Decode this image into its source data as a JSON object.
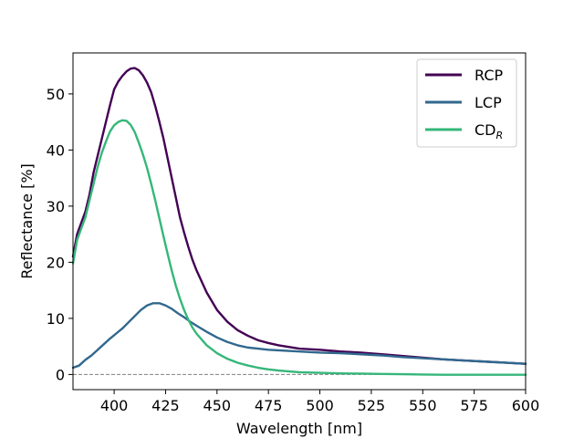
{
  "chart_data": {
    "type": "line",
    "xlabel": "Wavelength [nm]",
    "ylabel": "Reflectance [%]",
    "xlim": [
      380,
      600
    ],
    "ylim": [
      -2.7,
      57.3
    ],
    "xticks": [
      "400",
      "425",
      "450",
      "475",
      "500",
      "525",
      "550",
      "575",
      "600"
    ],
    "yticks": [
      "0",
      "10",
      "20",
      "30",
      "40",
      "50"
    ],
    "legend_position": "top-right",
    "grid": false,
    "reference_line": {
      "y": 0,
      "color": "#808080",
      "style": "dashed"
    },
    "series": [
      {
        "name": "RCP",
        "color": "#440154",
        "x": [
          380,
          382,
          384,
          386,
          388,
          390,
          392,
          394,
          396,
          398,
          400,
          402,
          404,
          406,
          408,
          410,
          412,
          414,
          416,
          418,
          420,
          422,
          424,
          426,
          428,
          430,
          432,
          434,
          436,
          438,
          440,
          445,
          450,
          455,
          460,
          465,
          470,
          475,
          480,
          490,
          500,
          510,
          520,
          530,
          540,
          550,
          560,
          570,
          580,
          590,
          600
        ],
        "y": [
          21,
          25,
          27,
          29,
          32,
          36,
          39,
          42,
          45,
          48,
          50.8,
          52.2,
          53.2,
          54.0,
          54.5,
          54.6,
          54.2,
          53.3,
          52.0,
          50.3,
          47.8,
          45.0,
          42.0,
          38.5,
          35.0,
          31.5,
          28.0,
          25.3,
          22.8,
          20.5,
          18.6,
          14.6,
          11.5,
          9.4,
          7.9,
          6.9,
          6.1,
          5.6,
          5.2,
          4.6,
          4.4,
          4.1,
          3.9,
          3.6,
          3.3,
          3.0,
          2.7,
          2.5,
          2.3,
          2.1,
          1.9
        ]
      },
      {
        "name": "LCP",
        "color": "#31688e",
        "x": [
          380,
          383,
          386,
          389,
          392,
          395,
          398,
          401,
          404,
          407,
          410,
          413,
          416,
          419,
          422,
          425,
          428,
          431,
          434,
          437,
          440,
          445,
          450,
          455,
          460,
          465,
          470,
          475,
          480,
          490,
          500,
          510,
          520,
          530,
          540,
          550,
          560,
          570,
          580,
          590,
          600
        ],
        "y": [
          1.2,
          1.6,
          2.6,
          3.4,
          4.4,
          5.4,
          6.4,
          7.3,
          8.2,
          9.3,
          10.4,
          11.5,
          12.3,
          12.7,
          12.7,
          12.3,
          11.7,
          10.9,
          10.2,
          9.4,
          8.7,
          7.6,
          6.6,
          5.8,
          5.2,
          4.8,
          4.6,
          4.4,
          4.3,
          4.1,
          3.9,
          3.8,
          3.6,
          3.4,
          3.1,
          2.9,
          2.7,
          2.5,
          2.3,
          2.1,
          1.9
        ]
      },
      {
        "name": "CD_R",
        "color": "#35b779",
        "x": [
          380,
          382,
          384,
          386,
          388,
          390,
          392,
          394,
          396,
          398,
          400,
          402,
          404,
          406,
          408,
          410,
          412,
          414,
          416,
          418,
          420,
          422,
          424,
          426,
          428,
          430,
          432,
          434,
          436,
          438,
          440,
          445,
          450,
          455,
          460,
          465,
          470,
          475,
          480,
          490,
          500,
          510,
          520,
          530,
          540,
          550,
          560,
          570,
          580,
          590,
          600
        ],
        "y": [
          19.8,
          24,
          26,
          28,
          31,
          34,
          37,
          39.5,
          41.5,
          43.3,
          44.4,
          45.0,
          45.3,
          45.2,
          44.5,
          43.2,
          41.3,
          39.2,
          36.8,
          34.0,
          31.0,
          27.8,
          24.6,
          21.5,
          18.5,
          15.8,
          13.5,
          11.5,
          9.8,
          8.4,
          7.3,
          5.2,
          3.8,
          2.8,
          2.1,
          1.6,
          1.2,
          0.9,
          0.7,
          0.4,
          0.3,
          0.2,
          0.15,
          0.1,
          0.05,
          0.0,
          -0.05,
          -0.05,
          -0.05,
          -0.05,
          -0.05
        ]
      }
    ],
    "legend": [
      {
        "label": "RCP"
      },
      {
        "label": "LCP"
      },
      {
        "label": "CD",
        "subscript": "R"
      }
    ]
  }
}
